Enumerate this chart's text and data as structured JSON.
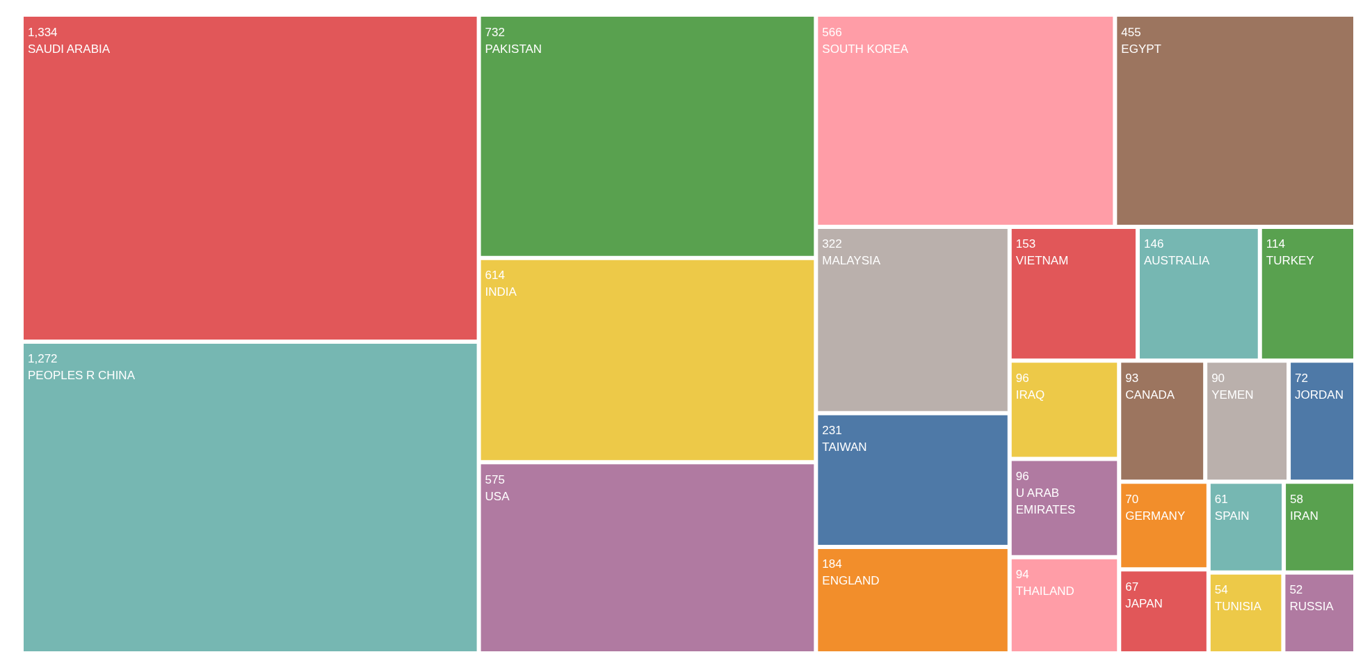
{
  "chart_data": {
    "type": "other",
    "categories": [
      "SAUDI ARABIA",
      "PEOPLES R CHINA",
      "PAKISTAN",
      "INDIA",
      "USA",
      "SOUTH KOREA",
      "EGYPT",
      "MALAYSIA",
      "TAIWAN",
      "ENGLAND",
      "VIETNAM",
      "AUSTRALIA",
      "TURKEY",
      "IRAQ",
      "U ARAB EMIRATES",
      "THAILAND",
      "CANADA",
      "YEMEN",
      "JORDAN",
      "GERMANY",
      "JAPAN",
      "SPAIN",
      "IRAN",
      "TUNISIA",
      "RUSSIA"
    ],
    "values": [
      1334,
      1272,
      732,
      614,
      575,
      566,
      455,
      322,
      231,
      184,
      153,
      146,
      114,
      96,
      96,
      94,
      93,
      90,
      72,
      70,
      67,
      61,
      58,
      54,
      52
    ],
    "value_labels": [
      "1,334",
      "1,272",
      "732",
      "614",
      "575",
      "566",
      "455",
      "322",
      "231",
      "184",
      "153",
      "146",
      "114",
      "96",
      "96",
      "94",
      "93",
      "90",
      "72",
      "70",
      "67",
      "61",
      "58",
      "54",
      "52"
    ],
    "colors": [
      "#e15759",
      "#76b7b2",
      "#59a14f",
      "#edc948",
      "#b07aa1",
      "#ff9da7",
      "#9c755f",
      "#bab0ac",
      "#4e79a7",
      "#f28e2b",
      "#e15759",
      "#76b7b2",
      "#59a14f",
      "#edc948",
      "#b07aa1",
      "#ff9da7",
      "#9c755f",
      "#bab0ac",
      "#4e79a7",
      "#f28e2b",
      "#e15759",
      "#76b7b2",
      "#59a14f",
      "#edc948",
      "#b07aa1"
    ]
  }
}
